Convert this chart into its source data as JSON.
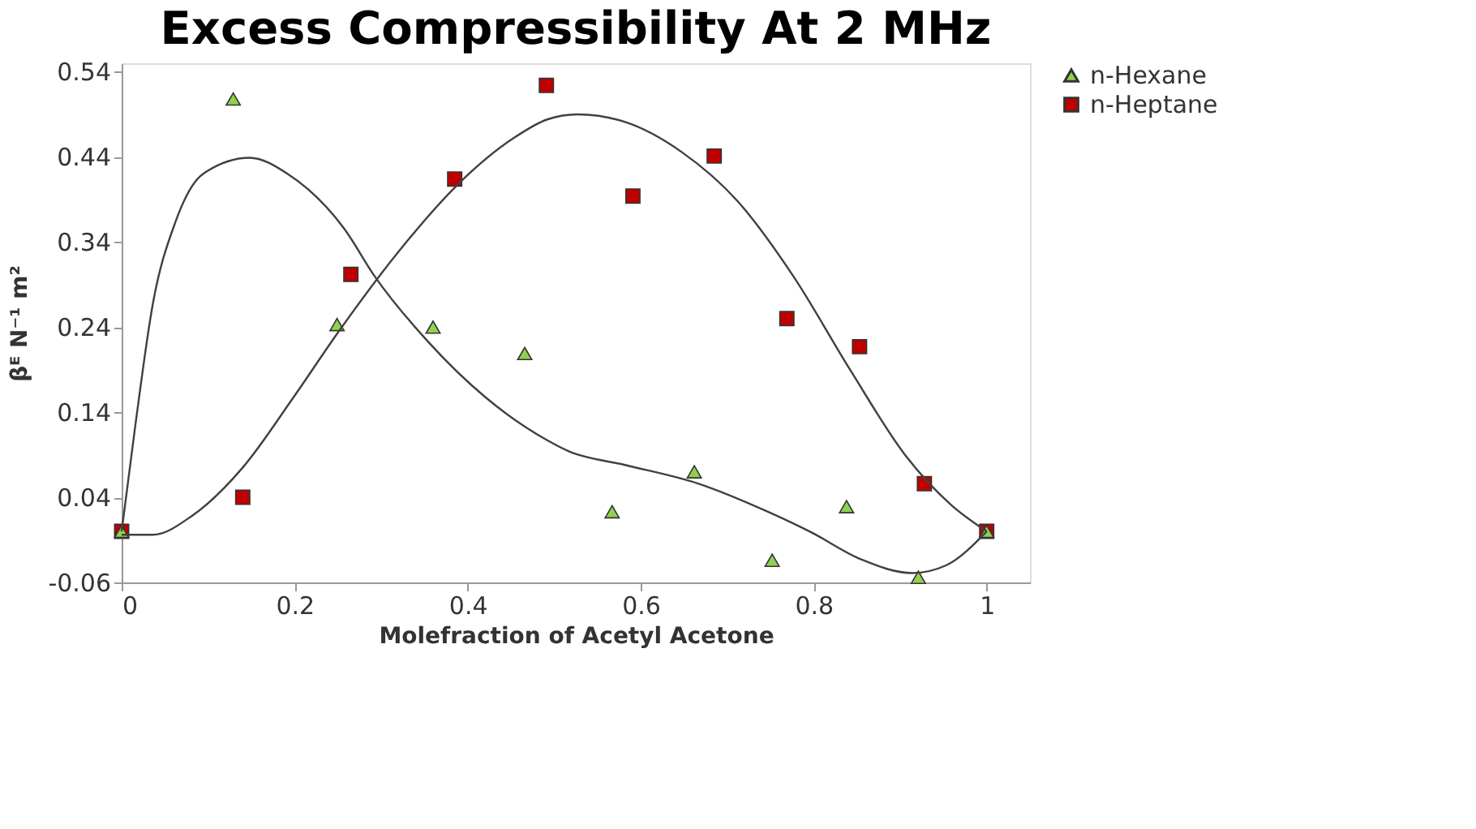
{
  "chart_data": {
    "type": "scatter",
    "title": "Excess Compressibility At 2 MHz",
    "xlabel": "Molefraction of Acetyl Acetone",
    "ylabel": "βᴱ N⁻¹ m²",
    "xlim": [
      0,
      1.05
    ],
    "ylim": [
      -0.06,
      0.55
    ],
    "xticks": [
      0,
      0.2,
      0.4,
      0.6,
      0.8,
      1
    ],
    "yticks": [
      -0.06,
      0.04,
      0.14,
      0.24,
      0.34,
      0.44,
      0.54
    ],
    "grid": false,
    "legend": "right",
    "series": [
      {
        "name": "n-Hexane",
        "marker": "triangle",
        "color": "#92d050",
        "x": [
          0,
          0.129,
          0.249,
          0.36,
          0.466,
          0.567,
          0.662,
          0.752,
          0.838,
          0.921,
          1
        ],
        "values": [
          0,
          0.508,
          0.243,
          0.24,
          0.209,
          0.023,
          0.07,
          -0.034,
          0.029,
          -0.054,
          0
        ]
      },
      {
        "name": "n-Heptane",
        "marker": "square",
        "color": "#c00000",
        "x": [
          0,
          0.14,
          0.265,
          0.385,
          0.491,
          0.591,
          0.685,
          0.769,
          0.853,
          0.928,
          1
        ],
        "values": [
          0,
          0.04,
          0.302,
          0.414,
          0.524,
          0.394,
          0.441,
          0.25,
          0.217,
          0.056,
          0
        ]
      },
      {
        "type": "line",
        "color": "#404040",
        "line_style": "solid",
        "x": [
          0,
          0.016,
          0.036,
          0.062,
          0.094,
          0.148,
          0.192,
          0.257,
          0.293,
          0.355,
          0.42,
          0.492,
          0.517,
          0.582,
          0.667,
          0.745,
          0.797,
          0.855,
          0.914,
          0.953,
          1
        ],
        "values": [
          0,
          0.126,
          0.267,
          0.363,
          0.42,
          0.439,
          0.42,
          0.356,
          0.299,
          0.222,
          0.158,
          0.107,
          0.094,
          0.078,
          0.056,
          0.024,
          -0.001,
          -0.033,
          -0.049,
          -0.04,
          0
        ]
      },
      {
        "type": "line",
        "color": "#404040",
        "line_style": "solid",
        "x": [
          0,
          0.036,
          0.081,
          0.14,
          0.199,
          0.251,
          0.322,
          0.388,
          0.453,
          0.492,
          0.527,
          0.582,
          0.647,
          0.712,
          0.777,
          0.842,
          0.907,
          0.959,
          1
        ],
        "values": [
          -0.004,
          -0.004,
          0.018,
          0.075,
          0.158,
          0.235,
          0.331,
          0.407,
          0.462,
          0.484,
          0.49,
          0.481,
          0.446,
          0.388,
          0.299,
          0.19,
          0.088,
          0.031,
          0
        ]
      }
    ]
  }
}
